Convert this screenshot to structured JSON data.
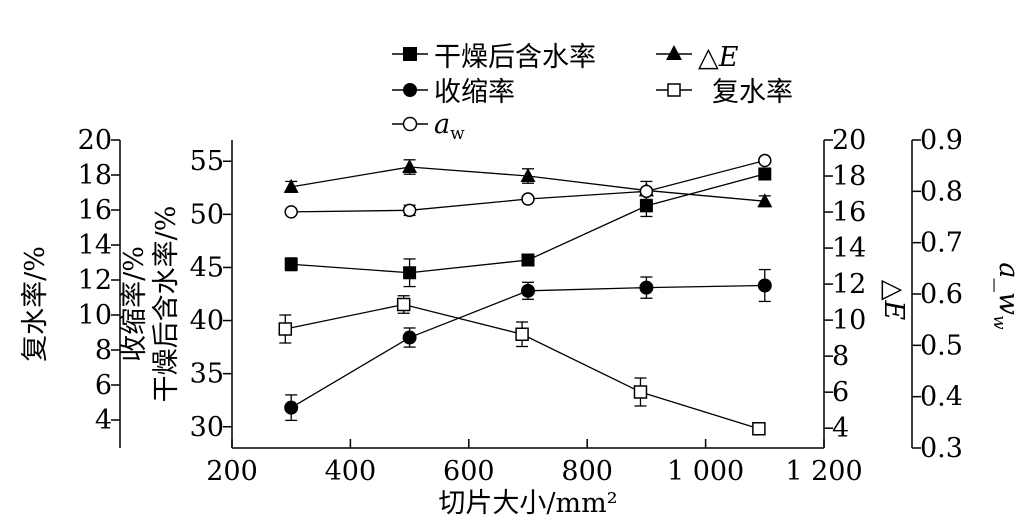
{
  "chart_data": {
    "type": "line",
    "xlabel": "切片大小/mm²",
    "xlim": [
      200,
      1200
    ],
    "xticks": [
      200,
      400,
      600,
      800,
      1000,
      1200
    ],
    "xtick_labels": [
      "200",
      "400",
      "600",
      "800",
      "1 000",
      "1 200"
    ],
    "axes": {
      "left_outer": {
        "label": "复水率/%",
        "lim": [
          2.4,
          20
        ],
        "ticks": [
          4,
          6,
          8,
          10,
          12,
          14,
          16,
          18,
          20
        ]
      },
      "left_inner": {
        "label_line1": "收缩率/%",
        "label_line2": "干燥后含水率/%",
        "lim": [
          28,
          57
        ],
        "ticks": [
          30,
          35,
          40,
          45,
          50,
          55
        ]
      },
      "right_inner": {
        "label": "△E",
        "lim": [
          2.9,
          20
        ],
        "ticks": [
          4,
          6,
          8,
          10,
          12,
          14,
          16,
          18,
          20
        ]
      },
      "right_outer": {
        "label": "a_w",
        "lim": [
          0.3,
          0.9
        ],
        "ticks": [
          0.3,
          0.4,
          0.5,
          0.6,
          0.7,
          0.8,
          0.9
        ],
        "tick_labels": [
          "0.3",
          "0.4",
          "0.5",
          "0.6",
          "0.7",
          "0.8",
          "0.9"
        ]
      }
    },
    "series": [
      {
        "name": "干燥后含水率",
        "axis": "left_inner",
        "marker": "square-filled",
        "x": [
          300,
          500,
          700,
          900,
          1100
        ],
        "y": [
          45.3,
          44.5,
          45.7,
          50.8,
          53.8
        ],
        "err": [
          0.6,
          1.3,
          0.5,
          1.0,
          0.5
        ]
      },
      {
        "name": "△E",
        "axis": "right_inner",
        "marker": "triangle-filled",
        "x": [
          300,
          500,
          700,
          900,
          1100
        ],
        "y": [
          17.4,
          18.5,
          18.0,
          17.2,
          16.6
        ],
        "err": [
          0.3,
          0.4,
          0.4,
          0.5,
          0.3
        ]
      },
      {
        "name": "收缩率",
        "axis": "left_inner",
        "marker": "circle-filled",
        "x": [
          300,
          500,
          700,
          900,
          1100
        ],
        "y": [
          31.8,
          38.4,
          42.8,
          43.1,
          43.3
        ],
        "err": [
          1.2,
          0.9,
          0.8,
          1.0,
          1.5
        ]
      },
      {
        "name": "复水率",
        "axis": "left_outer",
        "marker": "square-open",
        "x": [
          290,
          490,
          690,
          890,
          1090
        ],
        "y": [
          9.2,
          10.6,
          8.9,
          5.6,
          3.5
        ],
        "err": [
          0.8,
          0.5,
          0.7,
          0.8,
          0.3
        ]
      },
      {
        "name": "a",
        "name_sub": "w",
        "axis": "right_outer",
        "marker": "circle-open",
        "x": [
          300,
          500,
          700,
          900,
          1100
        ],
        "y": [
          0.76,
          0.763,
          0.785,
          0.8,
          0.86
        ],
        "err": [
          0.0,
          0.01,
          0.0,
          0.0,
          0.0
        ]
      }
    ],
    "legend": {
      "placement": "top",
      "entries": [
        {
          "label": "干燥后含水率",
          "marker": "square-filled"
        },
        {
          "label": "△E",
          "marker": "triangle-filled",
          "italic_part": "E"
        },
        {
          "label": "收缩率",
          "marker": "circle-filled"
        },
        {
          "label": "复水率",
          "marker": "square-open"
        },
        {
          "label": "a",
          "label_sub": "w",
          "marker": "circle-open"
        }
      ]
    }
  }
}
